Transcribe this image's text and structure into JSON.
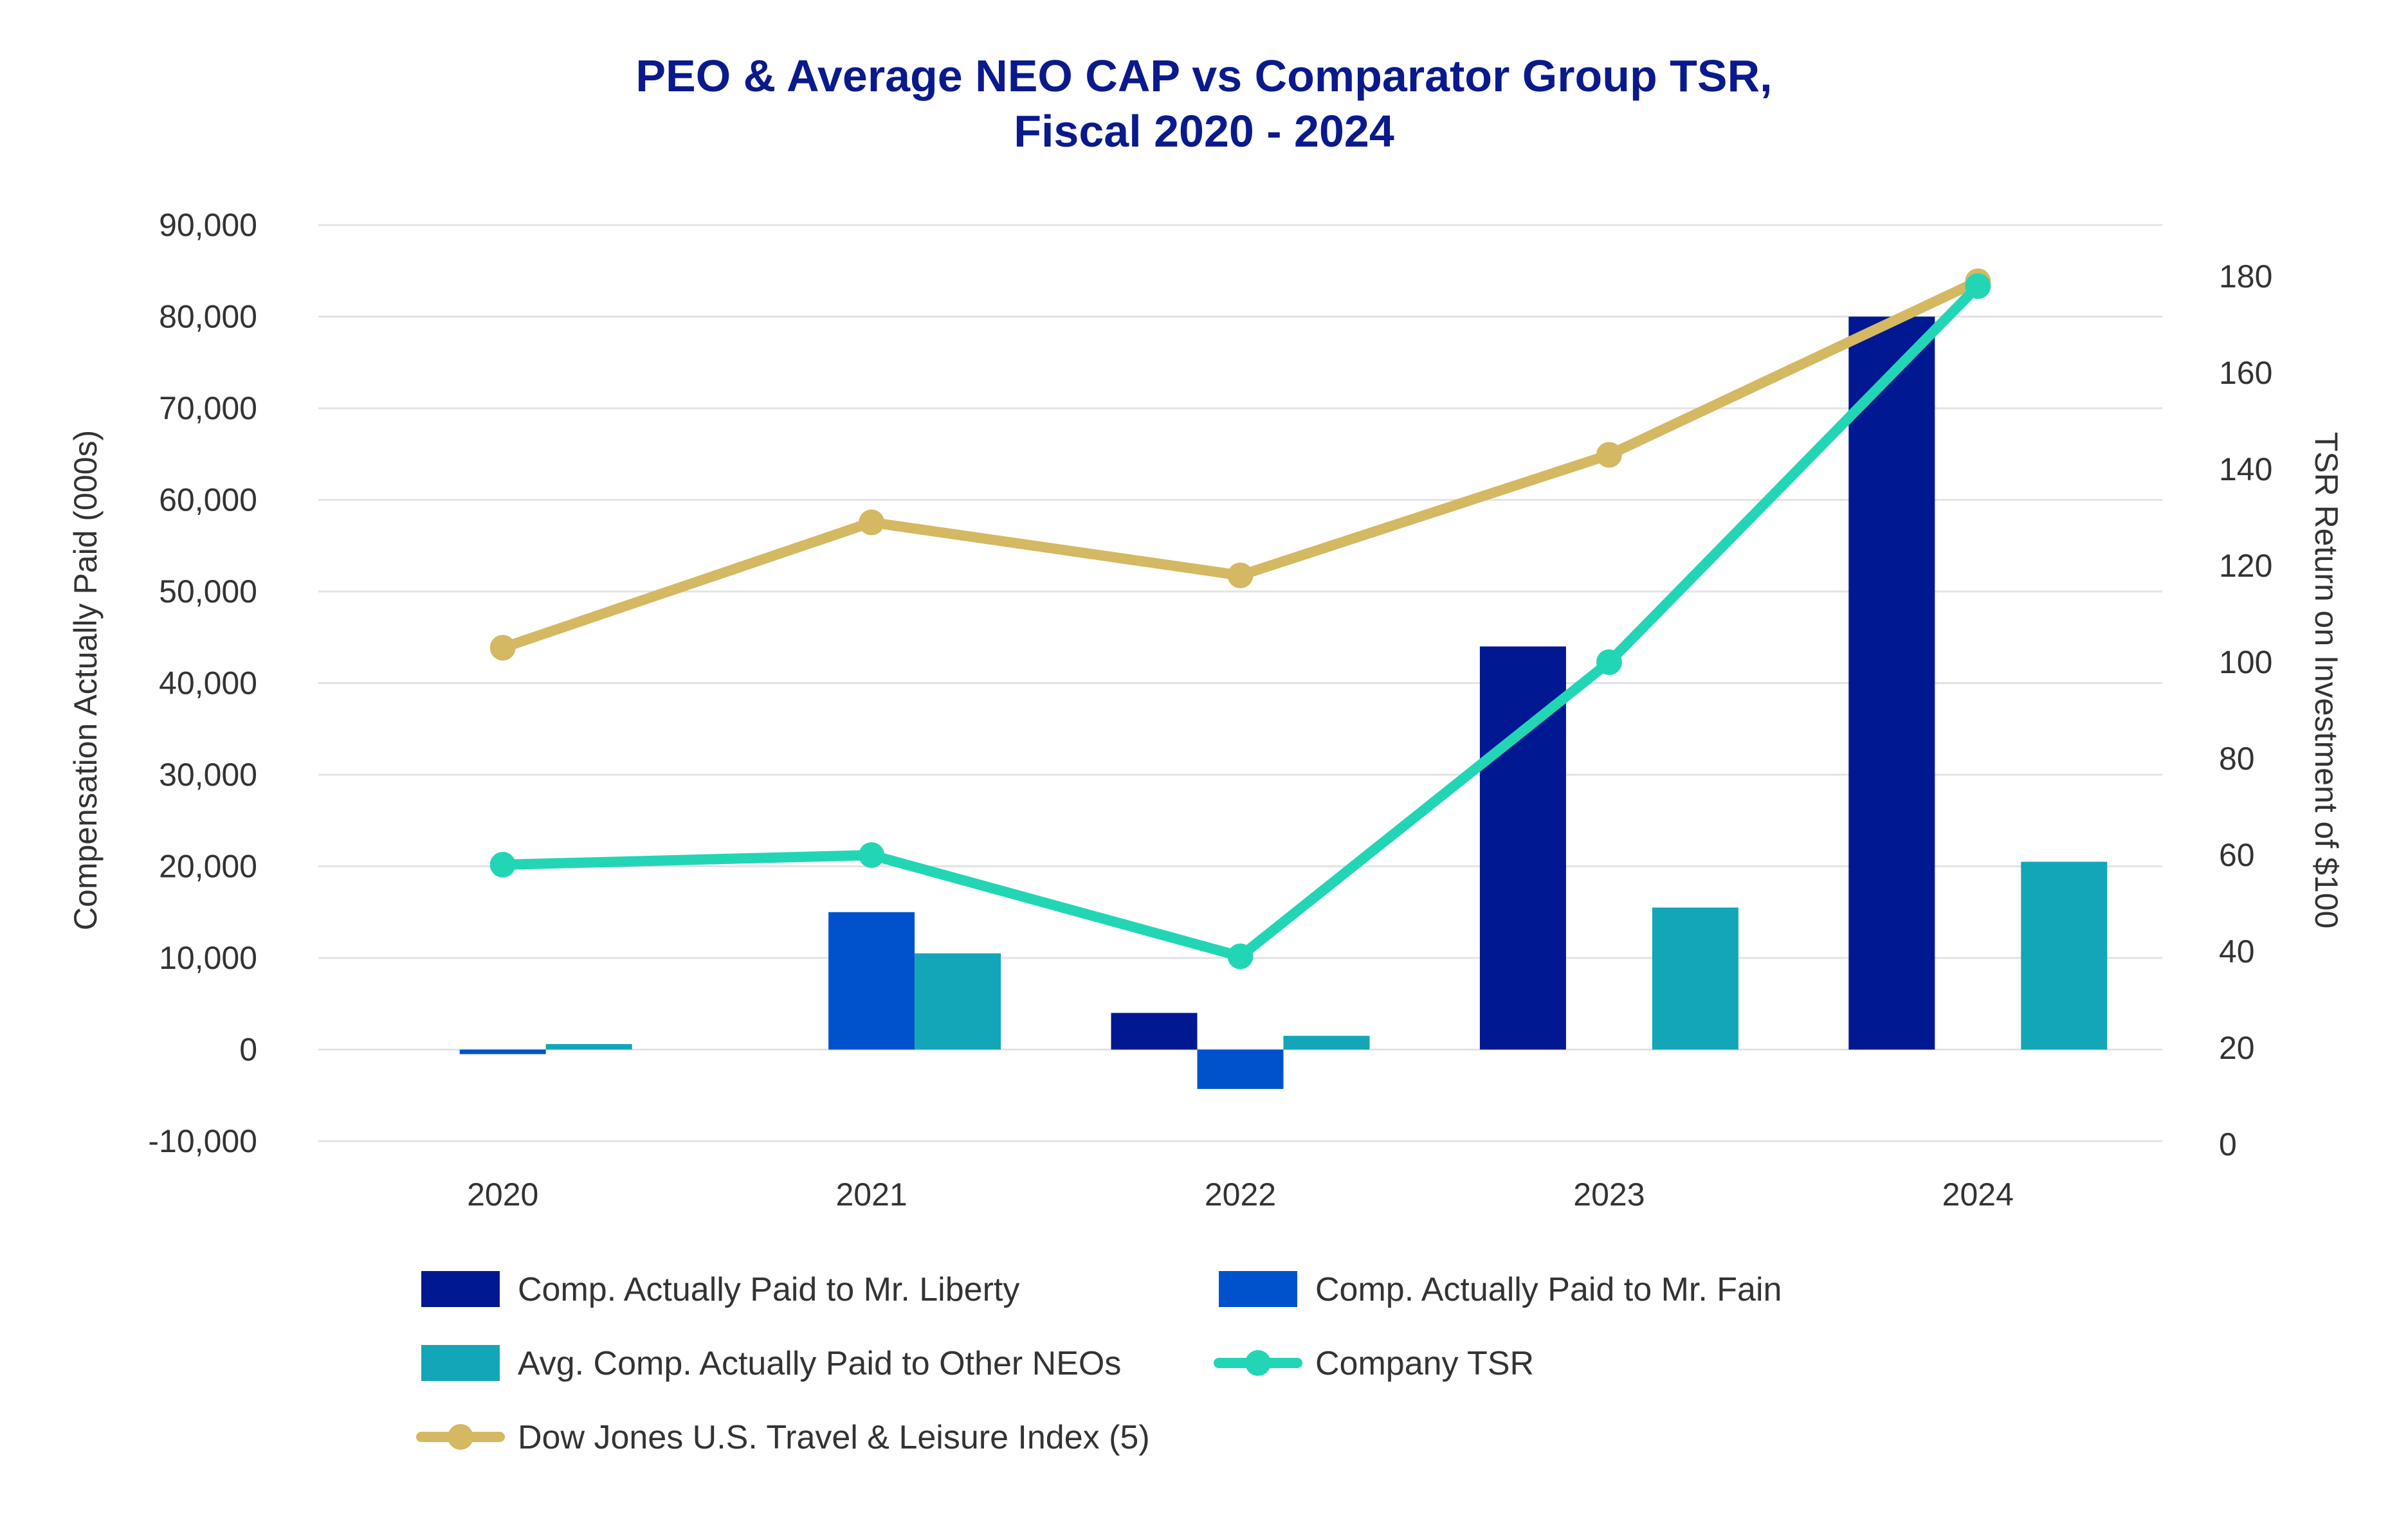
{
  "chart_data": {
    "type": "bar",
    "title": "PEO & Average NEO CAP vs Comparator Group TSR,",
    "title_line2": "Fiscal 2020 - 2024",
    "categories": [
      "2020",
      "2021",
      "2022",
      "2023",
      "2024"
    ],
    "ylabel": "Compensation Actually Paid (000s)",
    "y2label": "TSR Return on Investment of $100",
    "ylim": [
      -10000,
      90000
    ],
    "y2lim": [
      0,
      190
    ],
    "yticks": [
      "90,000",
      "80,000",
      "70,000",
      "60,000",
      "50,000",
      "40,000",
      "30,000",
      "20,000",
      "10,000",
      "0",
      "-10,000"
    ],
    "ytick_values": [
      90000,
      80000,
      70000,
      60000,
      50000,
      40000,
      30000,
      20000,
      10000,
      0,
      -10000
    ],
    "y2ticks": [
      "180",
      "160",
      "140",
      "120",
      "100",
      "80",
      "60",
      "40",
      "20",
      "0"
    ],
    "y2tick_values": [
      180,
      160,
      140,
      120,
      100,
      80,
      60,
      40,
      20,
      0
    ],
    "bar_series": [
      {
        "name": "Comp. Actually Paid to Mr. Liberty",
        "color": "#001891",
        "values": [
          null,
          null,
          4000,
          44000,
          80000
        ]
      },
      {
        "name": "Comp. Actually Paid to Mr. Fain",
        "color": "#0052cc",
        "values": [
          -500,
          15000,
          -4300,
          null,
          null
        ]
      },
      {
        "name": "Avg. Comp. Actually Paid to Other NEOs",
        "color": "#12a6b8",
        "values": [
          600,
          10500,
          1500,
          15500,
          20500
        ]
      }
    ],
    "line_series": [
      {
        "name": "Company TSR",
        "color": "#22d6b5",
        "axis": "right",
        "values": [
          58,
          60,
          39,
          100,
          178
        ]
      },
      {
        "name": "Dow Jones U.S. Travel & Leisure Index (5)",
        "color": "#d4b862",
        "axis": "right",
        "values": [
          103,
          129,
          118,
          143,
          179
        ]
      }
    ],
    "legend": [
      {
        "label": "Comp. Actually Paid to Mr. Liberty",
        "kind": "bar",
        "color": "#001891"
      },
      {
        "label": "Comp. Actually Paid to Mr. Fain",
        "kind": "bar",
        "color": "#0052cc"
      },
      {
        "label": "Avg. Comp. Actually Paid to Other NEOs",
        "kind": "bar",
        "color": "#12a6b8"
      },
      {
        "label": "Company TSR",
        "kind": "line",
        "color": "#22d6b5"
      },
      {
        "label": "Dow Jones U.S. Travel & Leisure Index (5)",
        "kind": "line",
        "color": "#d4b862"
      }
    ],
    "legend_position": "bottom",
    "grid": true
  }
}
